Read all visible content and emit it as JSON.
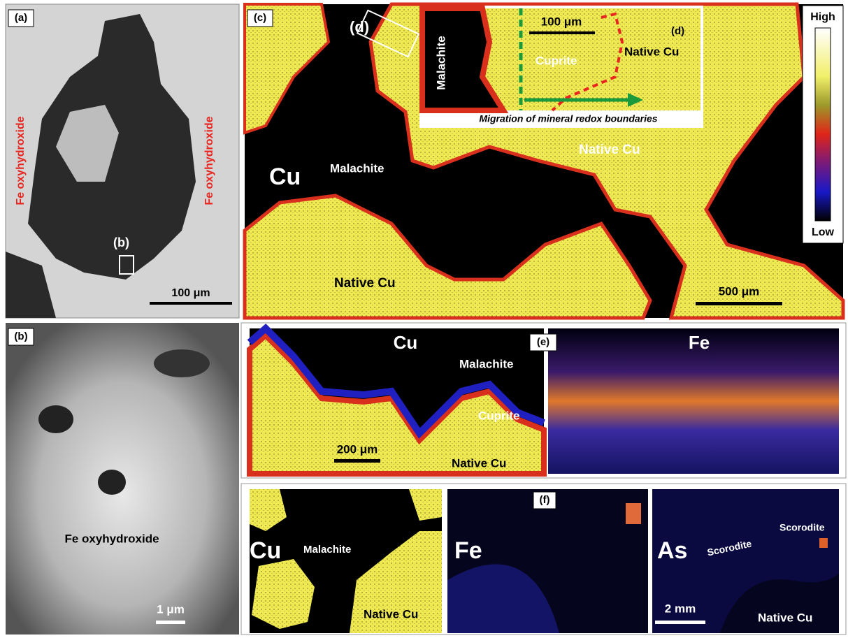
{
  "panels": {
    "a": {
      "tag": "(a)",
      "left_label": "Fe oxyhydroxide",
      "right_label": "Fe oxyhydroxide",
      "inset": "(b)",
      "scale": "100 μm"
    },
    "b": {
      "tag": "(b)",
      "label": "Fe oxyhydroxide",
      "scale": "1 μm"
    },
    "c": {
      "tag": "(c)",
      "inset": "(d)",
      "element": "Cu",
      "labels": [
        "Malachite",
        "Native Cu",
        "Native Cu"
      ],
      "scale": "500 μm"
    },
    "d": {
      "tag": "(d)",
      "labels": [
        "Malachite",
        "Cuprite",
        "Native Cu"
      ],
      "scale": "100 μm",
      "caption": "Migration of mineral redox boundaries"
    },
    "colorbar": {
      "high": "High",
      "low": "Low"
    },
    "e": {
      "tag": "(e)",
      "left_element": "Cu",
      "right_element": "Fe",
      "labels": [
        "Malachite",
        "Cuprite",
        "Native Cu"
      ],
      "scale": "200 μm"
    },
    "f": {
      "tag": "(f)",
      "cu": {
        "element": "Cu",
        "labels": [
          "Malachite",
          "Native Cu"
        ]
      },
      "fe": {
        "element": "Fe"
      },
      "as": {
        "element": "As",
        "labels": [
          "Scorodite",
          "Scorodite",
          "Native Cu"
        ]
      },
      "scale": "2 mm"
    }
  }
}
